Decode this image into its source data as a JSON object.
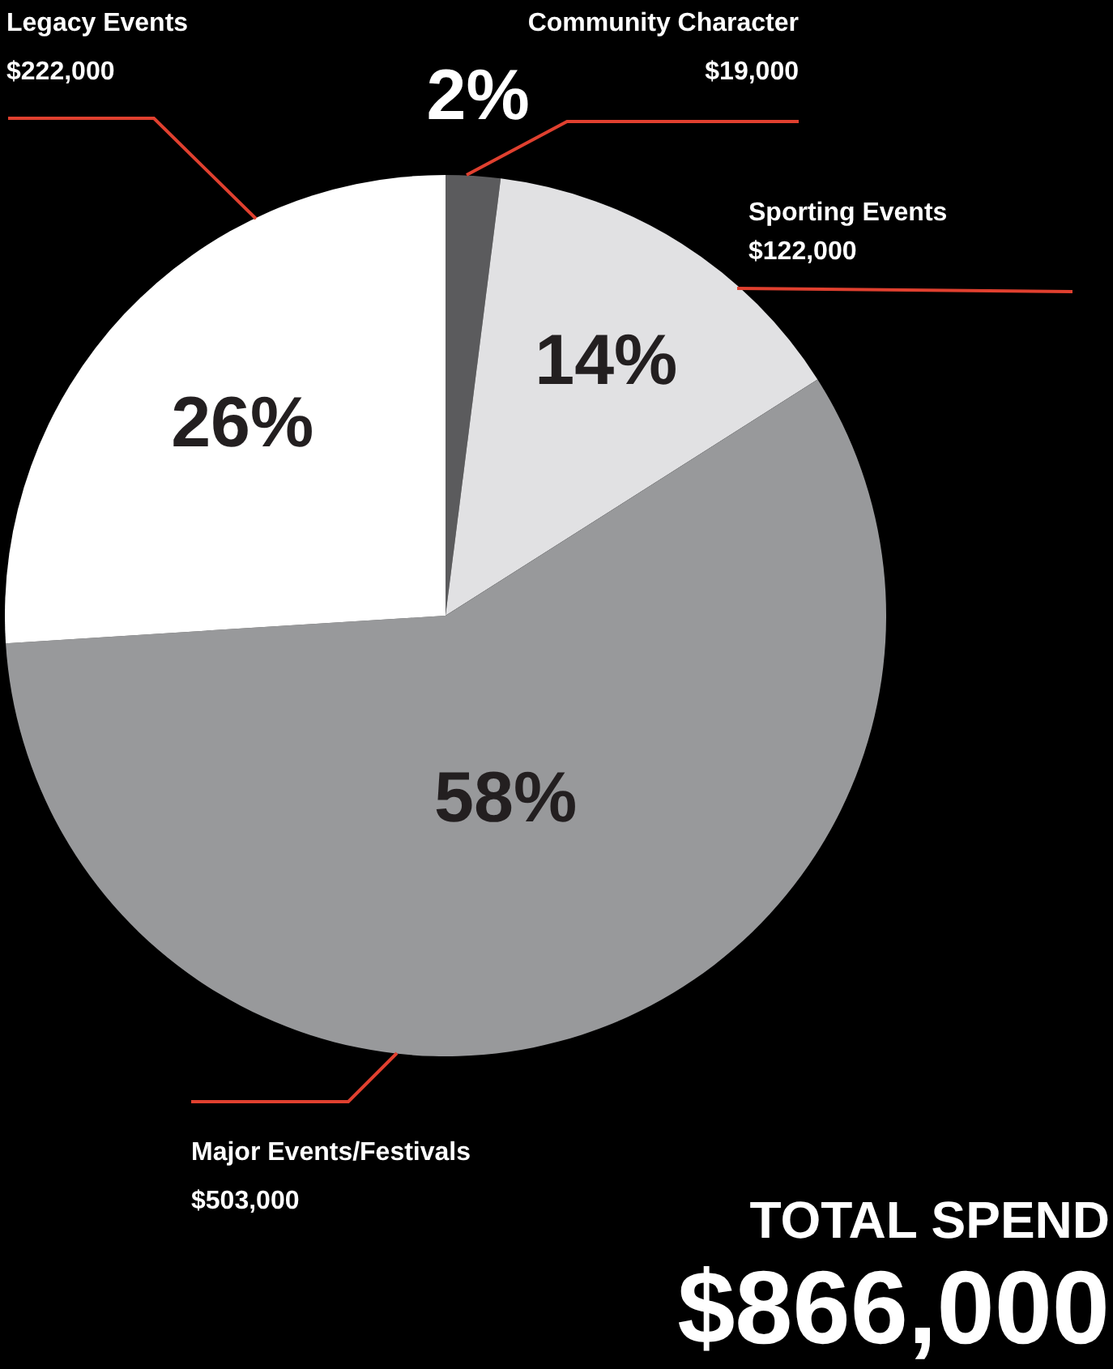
{
  "chart_data": {
    "type": "pie",
    "categories": [
      "Community Character",
      "Sporting Events",
      "Major Events/Festivals",
      "Legacy Events"
    ],
    "values": [
      2,
      14,
      58,
      26
    ],
    "colors": [
      "#5b5b5d",
      "#e1e1e3",
      "#98999b",
      "#ffffff"
    ],
    "value_labels": [
      "2%",
      "14%",
      "58%",
      "26%"
    ],
    "annotations": [
      "$19,000",
      "$122,000",
      "$503,000",
      "$222,000",
      "TOTAL SPEND",
      "$866,000"
    ]
  }
}
